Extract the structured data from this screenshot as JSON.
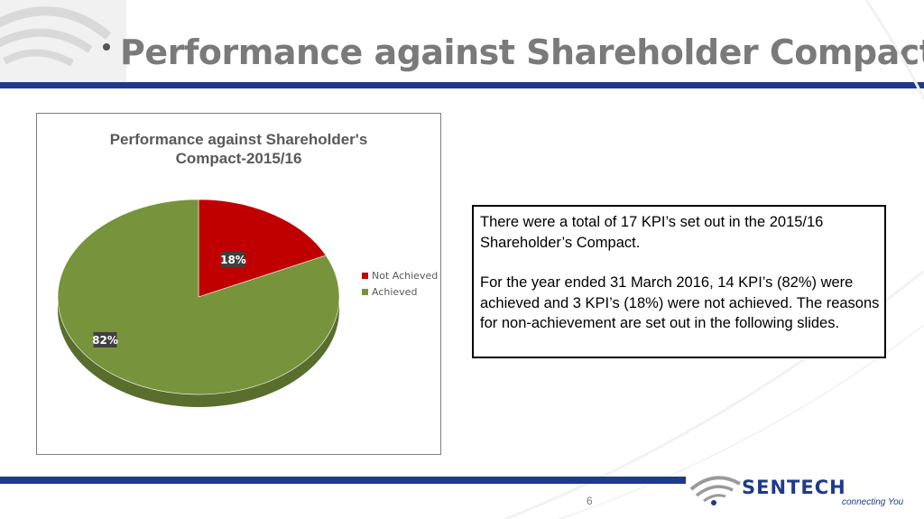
{
  "slide": {
    "title": "Performance against Shareholder Compact",
    "page_number": "6",
    "colors": {
      "brand_blue": "#1f3a8a",
      "title_gray": "#7a7a7a"
    }
  },
  "info_box": {
    "paragraph_1": "There were a total of 17 KPI’s set out in the 2015/16 Shareholder’s Compact.",
    "paragraph_2": "For the year ended 31 March 2016, 14 KPI’s (82%) were achieved and 3 KPI’s (18%) were not achieved. The reasons for non-achievement are set out in the following slides."
  },
  "logo": {
    "name": "SENTECH",
    "tagline": "connecting You",
    "icon": "wifi-signal-icon"
  },
  "chart_data": {
    "type": "pie",
    "title_line_1": "Performance against Shareholder's",
    "title_line_2": "Compact-2015/16",
    "series": [
      {
        "name": "Not Achieved",
        "value": 18,
        "label": "18%",
        "color": "#c00000"
      },
      {
        "name": "Achieved",
        "value": 82,
        "label": "82%",
        "color": "#77933c"
      }
    ],
    "legend_position": "right",
    "three_d": true
  }
}
